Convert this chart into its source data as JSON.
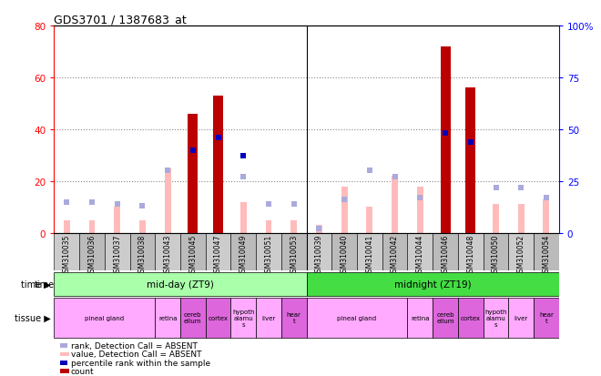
{
  "title": "GDS3701 / 1387683_at",
  "samples": [
    "GSM310035",
    "GSM310036",
    "GSM310037",
    "GSM310038",
    "GSM310043",
    "GSM310045",
    "GSM310047",
    "GSM310049",
    "GSM310051",
    "GSM310053",
    "GSM310039",
    "GSM310040",
    "GSM310041",
    "GSM310042",
    "GSM310044",
    "GSM310046",
    "GSM310048",
    "GSM310050",
    "GSM310052",
    "GSM310054"
  ],
  "count": [
    0,
    0,
    0,
    0,
    0,
    46,
    53,
    0,
    0,
    0,
    0,
    0,
    0,
    0,
    0,
    72,
    56,
    0,
    0,
    0
  ],
  "percentile_rank": [
    0,
    0,
    0,
    0,
    0,
    40,
    46,
    37,
    0,
    0,
    0,
    0,
    0,
    0,
    0,
    48,
    44,
    0,
    0,
    0
  ],
  "value_absent": [
    5,
    5,
    10,
    5,
    25,
    0,
    0,
    12,
    5,
    5,
    3,
    18,
    10,
    22,
    18,
    0,
    0,
    11,
    11,
    13
  ],
  "rank_absent": [
    15,
    15,
    14,
    13,
    30,
    0,
    0,
    27,
    14,
    14,
    2,
    16,
    30,
    27,
    17,
    0,
    0,
    22,
    22,
    17
  ],
  "count_color": "#bb0000",
  "percentile_color": "#0000bb",
  "value_absent_color": "#ffbbbb",
  "rank_absent_color": "#aaaadd",
  "ylim_left": [
    0,
    80
  ],
  "ylim_right": [
    0,
    100
  ],
  "yticks_left": [
    0,
    20,
    40,
    60,
    80
  ],
  "yticks_right": [
    0,
    25,
    50,
    75,
    100
  ],
  "time_groups": [
    {
      "label": "mid-day (ZT9)",
      "start": 0,
      "end": 10,
      "color": "#aaffaa"
    },
    {
      "label": "midnight (ZT19)",
      "start": 10,
      "end": 20,
      "color": "#44dd44"
    }
  ],
  "tissue_groups_first": [
    {
      "label": "pineal gland",
      "start": 0,
      "end": 4,
      "color": "#ffaaff"
    },
    {
      "label": "retina",
      "start": 4,
      "end": 5,
      "color": "#ffaaff"
    },
    {
      "label": "cereb\nellum",
      "start": 5,
      "end": 6,
      "color": "#dd66dd"
    },
    {
      "label": "cortex",
      "start": 6,
      "end": 7,
      "color": "#dd66dd"
    },
    {
      "label": "hypoth\nalamu\ns",
      "start": 7,
      "end": 8,
      "color": "#ffaaff"
    },
    {
      "label": "liver",
      "start": 8,
      "end": 9,
      "color": "#ffaaff"
    },
    {
      "label": "hear\nt",
      "start": 9,
      "end": 10,
      "color": "#dd66dd"
    }
  ],
  "tissue_groups_second": [
    {
      "label": "pineal gland",
      "start": 10,
      "end": 14,
      "color": "#ffaaff"
    },
    {
      "label": "retina",
      "start": 14,
      "end": 15,
      "color": "#ffaaff"
    },
    {
      "label": "cereb\nellum",
      "start": 15,
      "end": 16,
      "color": "#dd66dd"
    },
    {
      "label": "cortex",
      "start": 16,
      "end": 17,
      "color": "#dd66dd"
    },
    {
      "label": "hypoth\nalamu\ns",
      "start": 17,
      "end": 18,
      "color": "#ffaaff"
    },
    {
      "label": "liver",
      "start": 18,
      "end": 19,
      "color": "#ffaaff"
    },
    {
      "label": "hear\nt",
      "start": 19,
      "end": 20,
      "color": "#dd66dd"
    }
  ],
  "background_color": "#ffffff",
  "grid_color": "#888888",
  "bar_width": 0.4,
  "value_bar_width": 0.25
}
